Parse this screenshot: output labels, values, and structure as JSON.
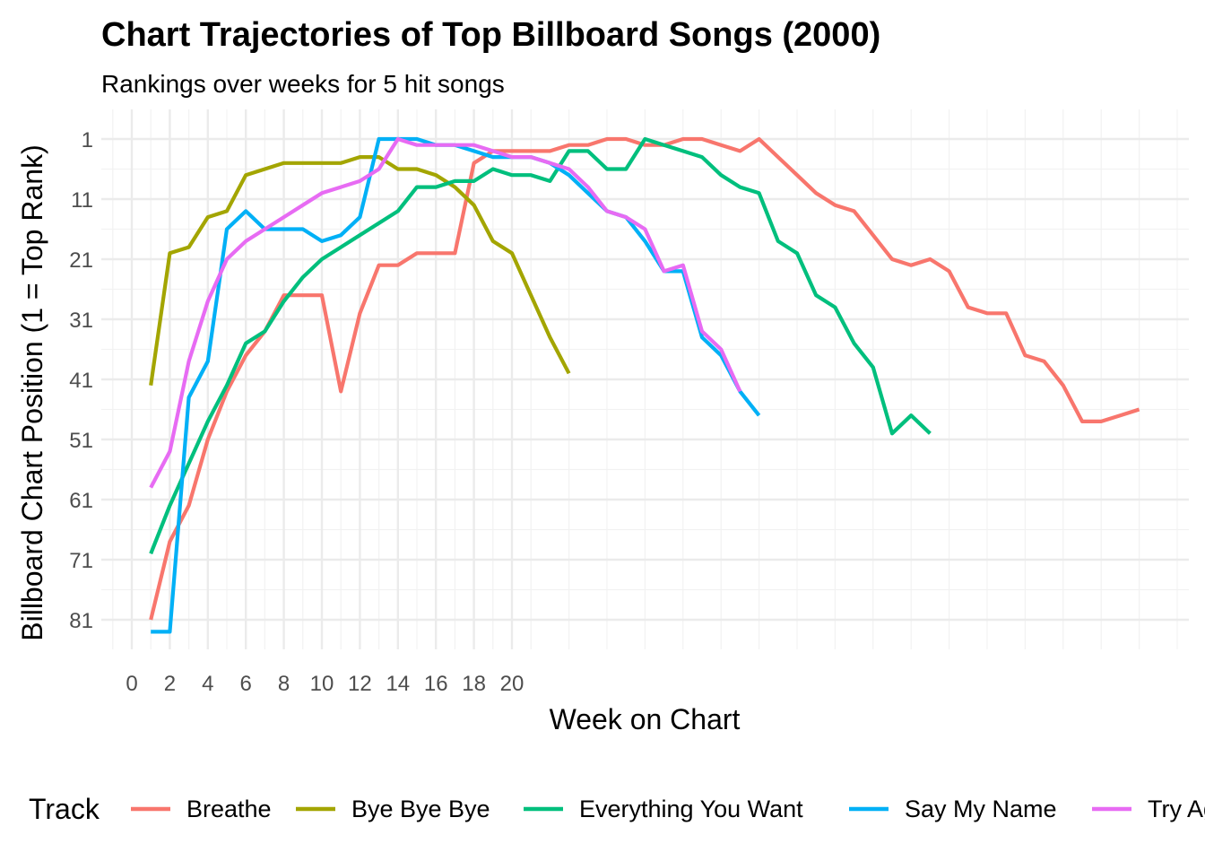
{
  "chart_data": {
    "type": "line",
    "title": "Chart Trajectories of Top Billboard Songs (2000)",
    "subtitle": "Rankings over weeks for 5 hit songs",
    "xlabel": "Week on Chart",
    "ylabel": "Billboard Chart Position (1 = Top Rank)",
    "x_ticks": [
      0,
      2,
      4,
      6,
      8,
      10,
      12,
      14,
      16,
      18,
      20
    ],
    "y_ticks": [
      1,
      11,
      21,
      31,
      41,
      51,
      61,
      71,
      81
    ],
    "xlim": [
      -0.5,
      55.5
    ],
    "ylim": [
      -3,
      86
    ],
    "y_reversed": true,
    "grid": true,
    "legend_title": "Track",
    "legend_position": "bottom",
    "series": [
      {
        "name": "Breathe",
        "color": "#F8766D",
        "values": [
          81,
          68,
          62,
          51,
          43,
          37,
          33,
          27,
          27,
          27,
          43,
          30,
          22,
          22,
          20,
          20,
          20,
          5,
          3,
          3,
          3,
          3,
          2,
          2,
          1,
          1,
          2,
          2,
          1,
          1,
          2,
          3,
          1,
          4,
          7,
          10,
          12,
          13,
          17,
          21,
          22,
          21,
          23,
          29,
          30,
          30,
          37,
          38,
          42,
          48,
          48,
          47,
          46
        ]
      },
      {
        "name": "Bye Bye Bye",
        "color": "#A3A500",
        "values": [
          42,
          20,
          19,
          14,
          13,
          7,
          6,
          5,
          5,
          5,
          5,
          4,
          4,
          6,
          6,
          7,
          9,
          12,
          18,
          20,
          27,
          34,
          40
        ]
      },
      {
        "name": "Everything You Want",
        "color": "#00BF7D",
        "values": [
          70,
          62,
          55,
          48,
          42,
          35,
          33,
          28,
          24,
          21,
          19,
          17,
          15,
          13,
          9,
          9,
          8,
          8,
          6,
          7,
          7,
          8,
          3,
          3,
          6,
          6,
          1,
          2,
          3,
          4,
          7,
          9,
          10,
          18,
          20,
          27,
          29,
          35,
          39,
          50,
          47,
          50
        ]
      },
      {
        "name": "Say My Name",
        "color": "#00B0F6",
        "values": [
          83,
          83,
          44,
          38,
          16,
          13,
          16,
          16,
          16,
          18,
          17,
          14,
          1,
          1,
          1,
          2,
          2,
          3,
          4,
          4,
          4,
          5,
          7,
          10,
          13,
          14,
          18,
          23,
          23,
          34,
          37,
          43,
          47
        ]
      },
      {
        "name": "Try Again",
        "color": "#E76BF3",
        "values": [
          59,
          53,
          38,
          28,
          21,
          18,
          16,
          14,
          12,
          10,
          9,
          8,
          6,
          1,
          2,
          2,
          2,
          2,
          3,
          4,
          4,
          5,
          6,
          9,
          13,
          14,
          16,
          23,
          22,
          33,
          36,
          43
        ]
      }
    ]
  }
}
